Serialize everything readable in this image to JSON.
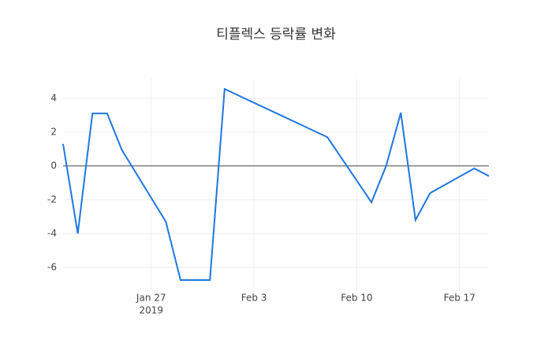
{
  "chart_data": {
    "type": "line",
    "title": "티플렉스 등락률 변화",
    "x": [
      "2019-01-21",
      "2019-01-22",
      "2019-01-23",
      "2019-01-24",
      "2019-01-25",
      "2019-01-28",
      "2019-01-29",
      "2019-01-31",
      "2019-02-01",
      "2019-02-08",
      "2019-02-11",
      "2019-02-12",
      "2019-02-13",
      "2019-02-14",
      "2019-02-15",
      "2019-02-18",
      "2019-02-19"
    ],
    "series": [
      {
        "name": "등락률",
        "color": "#1f77e0",
        "values": [
          1.3,
          -4.0,
          3.1,
          3.1,
          0.95,
          -3.3,
          -6.75,
          -6.75,
          4.55,
          1.7,
          -2.15,
          0.0,
          3.15,
          -3.2,
          -1.6,
          -0.15,
          -0.6
        ]
      }
    ],
    "xlim": [
      "2019-01-21",
      "2019-02-19"
    ],
    "xticks": [
      {
        "value": "2019-01-27",
        "label": "Jan 27"
      },
      {
        "value": "2019-02-03",
        "label": "Feb 3"
      },
      {
        "value": "2019-02-10",
        "label": "Feb 10"
      },
      {
        "value": "2019-02-17",
        "label": "Feb 17"
      }
    ],
    "x_year_label": "2019",
    "ylim": [
      -7.4,
      5.16
    ],
    "yticks": [
      -6,
      -4,
      -2,
      0,
      2,
      4
    ],
    "grid": true,
    "zeroline": true
  }
}
